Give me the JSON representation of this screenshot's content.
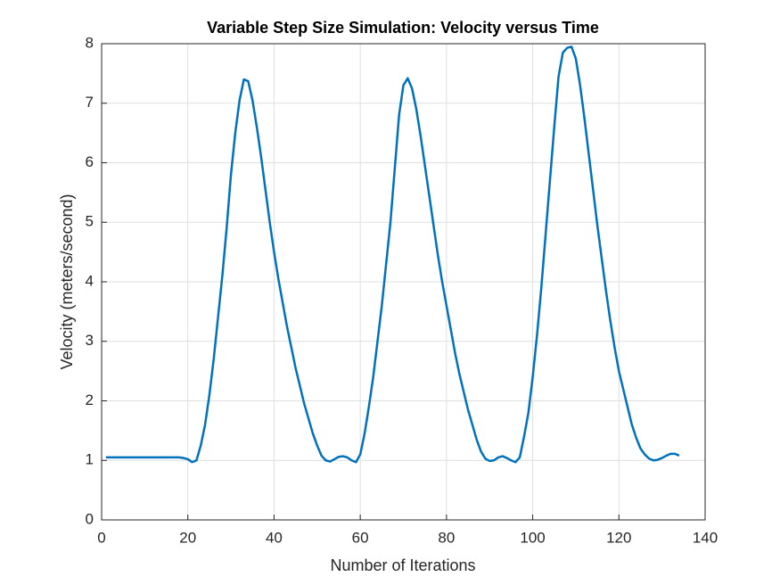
{
  "chart_data": {
    "type": "line",
    "title": "Variable Step Size Simulation: Velocity versus Time",
    "x_label": "Number of Iterations",
    "y_label": "Velocity (meters/second)",
    "x": [
      1,
      2,
      3,
      4,
      5,
      6,
      7,
      8,
      9,
      10,
      11,
      12,
      13,
      14,
      15,
      16,
      17,
      18,
      19,
      20,
      21,
      22,
      23,
      24,
      25,
      26,
      27,
      28,
      29,
      30,
      31,
      32,
      33,
      34,
      35,
      36,
      37,
      38,
      39,
      40,
      41,
      42,
      43,
      44,
      45,
      46,
      47,
      48,
      49,
      50,
      51,
      52,
      53,
      54,
      55,
      56,
      57,
      58,
      59,
      60,
      61,
      62,
      63,
      64,
      65,
      66,
      67,
      68,
      69,
      70,
      71,
      72,
      73,
      74,
      75,
      76,
      77,
      78,
      79,
      80,
      81,
      82,
      83,
      84,
      85,
      86,
      87,
      88,
      89,
      90,
      91,
      92,
      93,
      94,
      95,
      96,
      97,
      98,
      99,
      100,
      101,
      102,
      103,
      104,
      105,
      106,
      107,
      108,
      109,
      110,
      111,
      112,
      113,
      114,
      115,
      116,
      117,
      118,
      119,
      120,
      121,
      122,
      123,
      124,
      125,
      126,
      127,
      128,
      129,
      130,
      131,
      132,
      133,
      134
    ],
    "series": [
      {
        "color": "#0072bd",
        "values": [
          1.05,
          1.05,
          1.05,
          1.05,
          1.05,
          1.05,
          1.05,
          1.05,
          1.05,
          1.05,
          1.05,
          1.05,
          1.05,
          1.05,
          1.05,
          1.05,
          1.05,
          1.05,
          1.04,
          1.02,
          0.97,
          1.0,
          1.25,
          1.6,
          2.1,
          2.7,
          3.4,
          4.1,
          4.9,
          5.8,
          6.5,
          7.05,
          7.4,
          7.37,
          7.05,
          6.6,
          6.1,
          5.55,
          5.0,
          4.5,
          4.05,
          3.65,
          3.25,
          2.9,
          2.55,
          2.25,
          1.95,
          1.7,
          1.45,
          1.25,
          1.08,
          1.0,
          0.98,
          1.02,
          1.06,
          1.07,
          1.05,
          1.0,
          0.97,
          1.1,
          1.45,
          1.9,
          2.4,
          3.0,
          3.6,
          4.3,
          5.0,
          5.9,
          6.8,
          7.3,
          7.42,
          7.25,
          6.9,
          6.45,
          5.95,
          5.45,
          4.95,
          4.45,
          4.0,
          3.6,
          3.2,
          2.8,
          2.45,
          2.15,
          1.85,
          1.6,
          1.35,
          1.15,
          1.03,
          0.99,
          1.0,
          1.05,
          1.07,
          1.04,
          1.0,
          0.97,
          1.05,
          1.4,
          1.8,
          2.4,
          3.1,
          3.9,
          4.8,
          5.7,
          6.6,
          7.45,
          7.85,
          7.93,
          7.95,
          7.75,
          7.3,
          6.75,
          6.15,
          5.55,
          4.95,
          4.4,
          3.85,
          3.35,
          2.9,
          2.5,
          2.2,
          1.9,
          1.6,
          1.38,
          1.2,
          1.1,
          1.03,
          1.0,
          1.01,
          1.04,
          1.08,
          1.11,
          1.11,
          1.08
        ]
      }
    ],
    "xlim": [
      0,
      140
    ],
    "xticks": [
      0,
      20,
      40,
      60,
      80,
      100,
      120,
      140
    ],
    "ylim": [
      0,
      8
    ],
    "yticks": [
      0,
      1,
      2,
      3,
      4,
      5,
      6,
      7,
      8
    ],
    "grid": true
  }
}
